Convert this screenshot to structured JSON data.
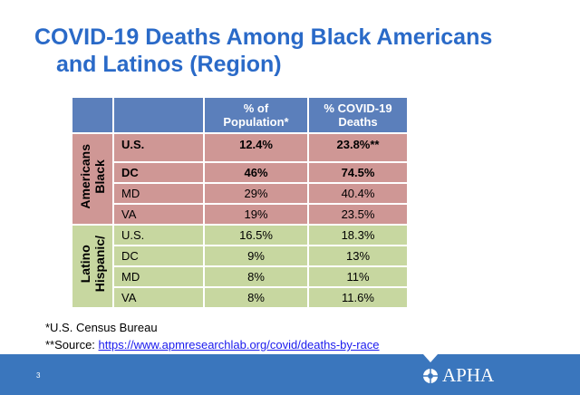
{
  "title": {
    "line1": "COVID-19 Deaths Among Black Americans",
    "line2": "and Latinos (Region)"
  },
  "table": {
    "headers": [
      "",
      "",
      "% of Population*",
      "% COVID-19 Deaths"
    ],
    "groups": [
      {
        "label_line1": "Black",
        "label_line2": "Americans",
        "rows": [
          {
            "region": "U.S.",
            "pop": "12.4%",
            "deaths": "23.8%**",
            "bold": true
          },
          {
            "region": "DC",
            "pop": "46%",
            "deaths": "74.5%",
            "bold": true
          },
          {
            "region": "MD",
            "pop": "29%",
            "deaths": "40.4%"
          },
          {
            "region": "VA",
            "pop": "19%",
            "deaths": "23.5%"
          }
        ]
      },
      {
        "label_line1": "Hispanic/",
        "label_line2": "Latino",
        "rows": [
          {
            "region": "U.S.",
            "pop": "16.5%",
            "deaths": "18.3%"
          },
          {
            "region": "DC",
            "pop": "9%",
            "deaths": "13%"
          },
          {
            "region": "MD",
            "pop": "8%",
            "deaths": "11%"
          },
          {
            "region": "VA",
            "pop": "8%",
            "deaths": "11.6%"
          }
        ]
      }
    ]
  },
  "notes": {
    "census": "*U.S. Census Bureau",
    "source_label": "**Source: ",
    "source_link": "https://www.apmresearchlab.org/covid/deaths-by-race"
  },
  "footer": {
    "page": "3",
    "logo": "APHA"
  }
}
